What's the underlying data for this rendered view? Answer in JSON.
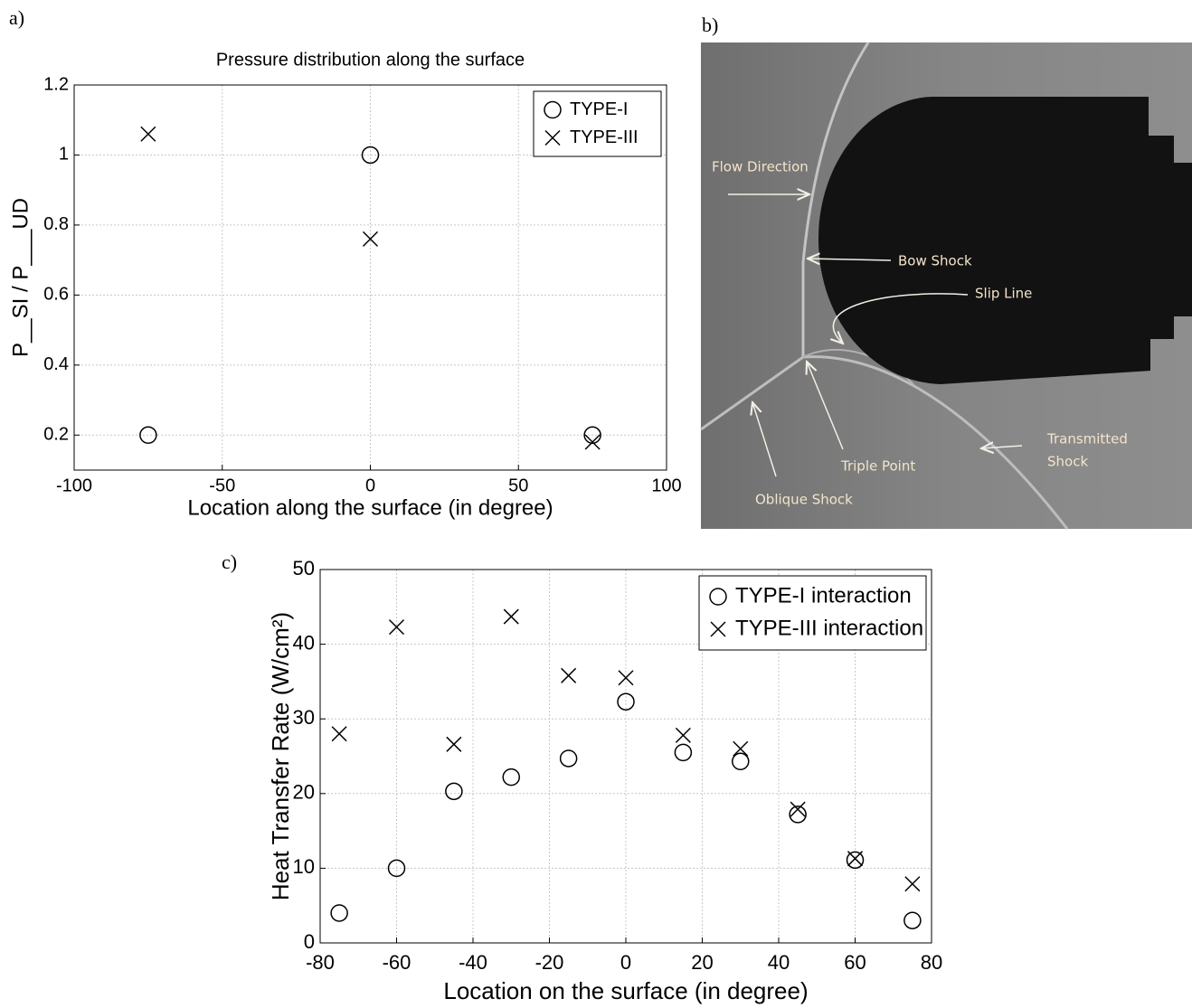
{
  "panel_labels": [
    "a)",
    "b)",
    "c)"
  ],
  "chart_data": [
    {
      "type": "scatter",
      "title": "Pressure distribution along the surface",
      "x_label": "Location along the surface (in degree)",
      "y_label": "P__SI / P___UD",
      "x": [
        -75,
        0,
        75
      ],
      "series": [
        {
          "name": "TYPE-I",
          "color": "#000000",
          "marker": "circle",
          "values": [
            0.2,
            1.0,
            0.2
          ]
        },
        {
          "name": "TYPE-III",
          "color": "#000000",
          "marker": "cross",
          "values": [
            1.06,
            0.76,
            0.18
          ]
        }
      ],
      "xlim": [
        -100,
        100
      ],
      "xticks": [
        -100,
        -50,
        0,
        50,
        100
      ],
      "ylim": [
        0.1,
        1.2
      ],
      "yticks": [
        0.2,
        0.4,
        0.6,
        0.8,
        1,
        1.2
      ],
      "grid": true,
      "legend": "upper right"
    },
    {
      "type": "scatter",
      "x_label": "Location on the surface (in degree)",
      "y_label": "Heat Transfer Rate (W/cm²)",
      "x": [
        -75,
        -60,
        -45,
        -30,
        -15,
        0,
        15,
        30,
        45,
        60,
        75
      ],
      "series": [
        {
          "name": "TYPE-I interaction",
          "color": "#000000",
          "marker": "circle",
          "values": [
            4.0,
            10.0,
            20.3,
            22.2,
            24.7,
            32.3,
            25.5,
            24.3,
            17.2,
            11.1,
            3.0
          ]
        },
        {
          "name": "TYPE-III interaction",
          "color": "#000000",
          "marker": "cross",
          "values": [
            28.0,
            42.3,
            26.6,
            43.7,
            35.8,
            35.5,
            27.8,
            26.0,
            17.9,
            11.3,
            7.9
          ]
        }
      ],
      "xlim": [
        -80,
        80
      ],
      "xticks": [
        -80,
        -60,
        -40,
        -20,
        0,
        20,
        40,
        60,
        80
      ],
      "ylim": [
        0,
        50
      ],
      "yticks": [
        0,
        10,
        20,
        30,
        40,
        50
      ],
      "grid": true,
      "legend": "upper right"
    }
  ],
  "image": {
    "annotations": [
      {
        "lines": [
          "Flow Direction"
        ]
      },
      {
        "lines": [
          "Bow Shock"
        ]
      },
      {
        "lines": [
          "Slip Line"
        ]
      },
      {
        "lines": [
          "Triple Point"
        ]
      },
      {
        "lines": [
          "Oblique Shock"
        ]
      },
      {
        "lines": [
          "Transmitted",
          "Shock"
        ]
      }
    ]
  }
}
